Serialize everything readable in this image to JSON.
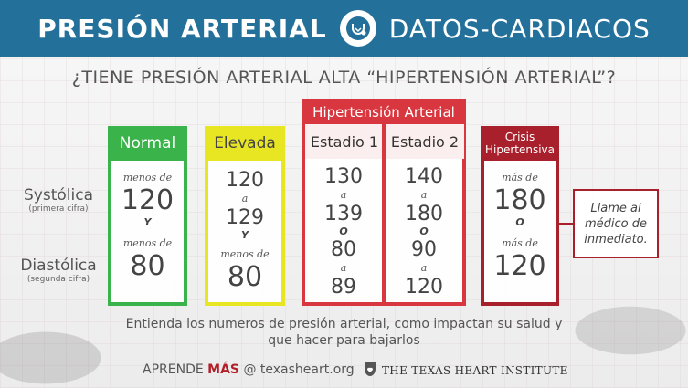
{
  "header": {
    "title_left": "PRESIÓN ARTERIAL",
    "title_right": "DATOS-CARDIACOS",
    "logo_icon": "stethoscope-heart-icon"
  },
  "question": "¿TIENE PRESIÓN ARTERIAL ALTA “HIPERTENSIÓN ARTERIAL”?",
  "rows": {
    "systolic": {
      "label": "Systólica",
      "sub": "(primera cifra)"
    },
    "diastolic": {
      "label": "Diastólica",
      "sub": "(segunda cifra)"
    }
  },
  "categories": {
    "normal": {
      "title": "Normal",
      "sys_prefix": "menos de",
      "sys": "120",
      "joiner": "Y",
      "dia_prefix": "menos de",
      "dia": "80",
      "color": "#3ab34a"
    },
    "elevada": {
      "title": "Elevada",
      "sys_from": "120",
      "sys_a": "a",
      "sys_to": "129",
      "joiner": "Y",
      "dia_prefix": "menos de",
      "dia": "80",
      "color": "#e8e523"
    },
    "hypertension": {
      "title": "Hipertensión Arterial",
      "color": "#d9373f",
      "stage1": {
        "title": "Estadio 1",
        "sys_from": "130",
        "a1": "a",
        "sys_to": "139",
        "joiner": "O",
        "dia_from": "80",
        "a2": "a",
        "dia_to": "89"
      },
      "stage2": {
        "title": "Estadio 2",
        "sys_from": "140",
        "a1": "a",
        "sys_to": "180",
        "joiner": "O",
        "dia_from": "90",
        "a2": "a",
        "dia_to": "120"
      }
    },
    "crisis": {
      "title_line1": "Crisis",
      "title_line2": "Hipertensiva",
      "sys_prefix": "más de",
      "sys": "180",
      "joiner": "O",
      "dia_prefix": "más de",
      "dia": "120",
      "color": "#a8202c"
    }
  },
  "callout": "Llame al médico de inmediato.",
  "footer": {
    "text_line1": "Entienda los numeros de presión arterial, como impactan su salud y",
    "text_line2": "que hacer para bajarlos",
    "cta_prefix": "APRENDE ",
    "cta_bold": "MÁS",
    "cta_suffix": " @ texasheart.org",
    "institute": "THE TEXAS HEART INSTITUTE",
    "institute_logo_icon": "shield-heart-icon"
  }
}
